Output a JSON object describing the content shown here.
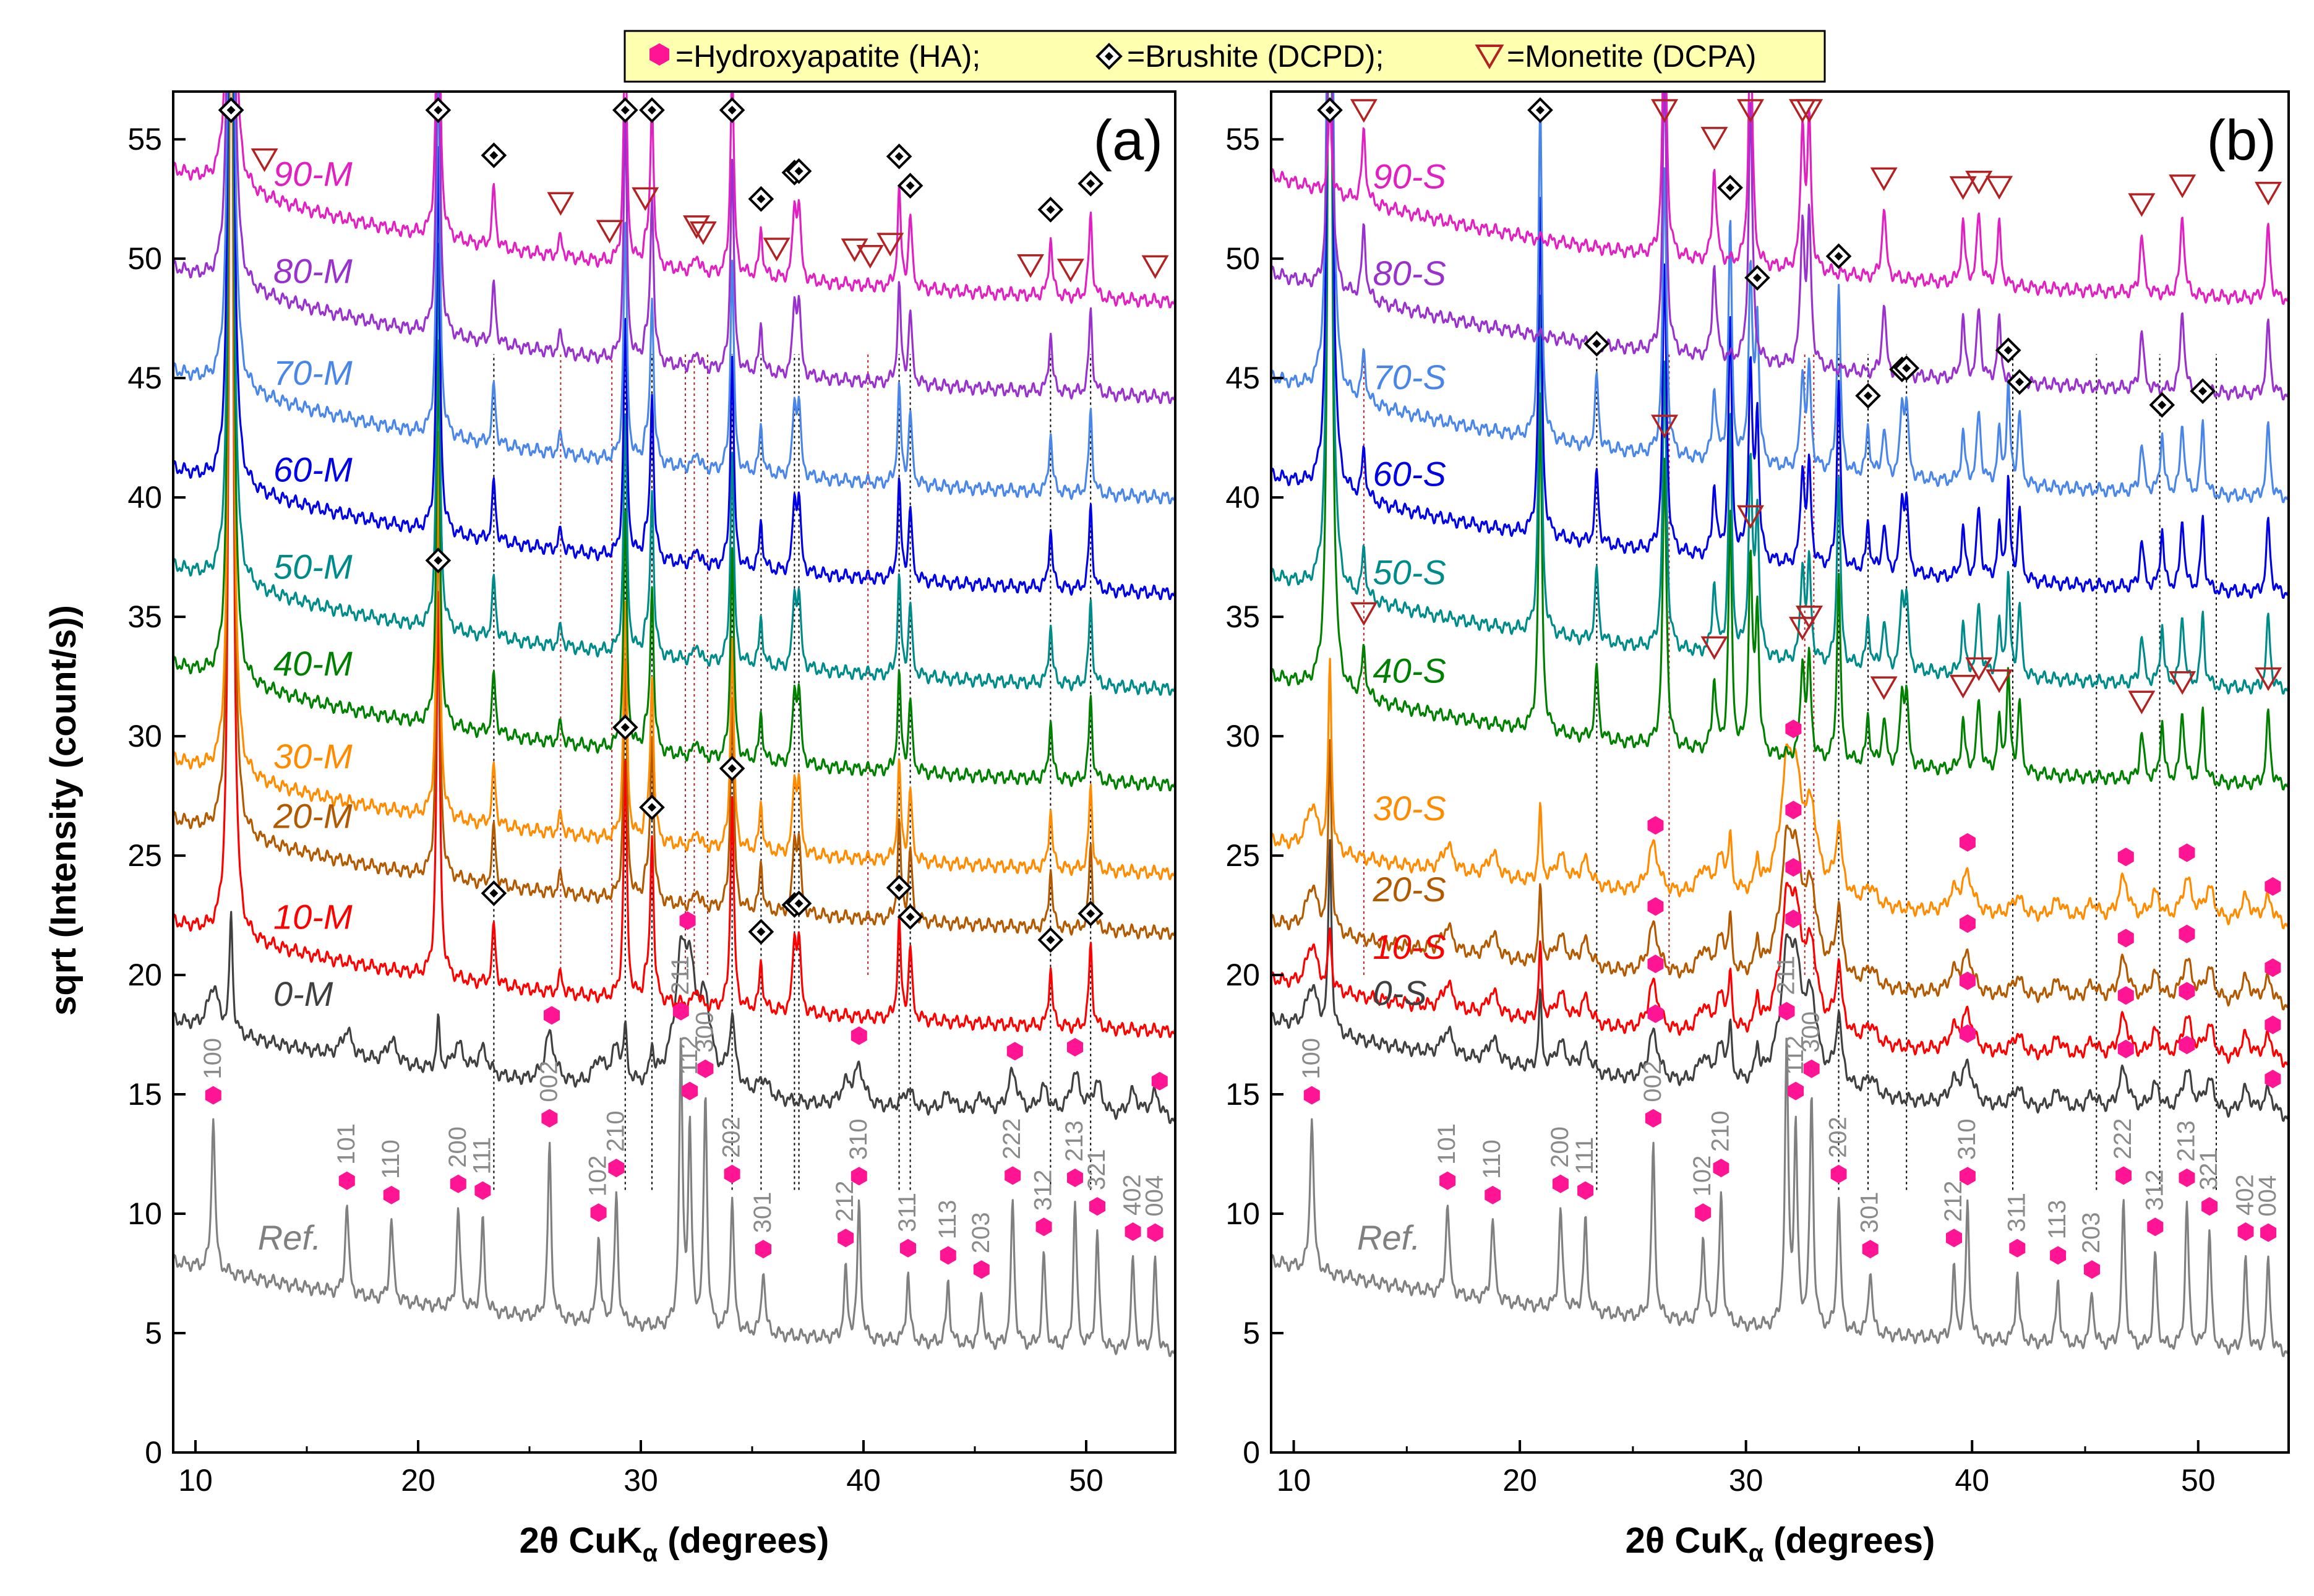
{
  "legend": {
    "ha_label": "=Hydroxyapatite (HA);",
    "dcpd_label": "=Brushite (DCPD);",
    "dcpa_label": "=Monetite (DCPA)",
    "colors": {
      "ha": "#ff1493",
      "dcpd": "#000000",
      "dcpa": "#b22222",
      "box_fill": "#ffffb0"
    }
  },
  "chart_data": [
    {
      "type": "line",
      "panel": "(a)",
      "xlabel_main": "2θ CuK",
      "xlabel_sub": "α",
      "xlabel_end": " (degrees)",
      "ylabel": "sqrt (Intensity (count/s))",
      "xlim": [
        9,
        54
      ],
      "ylim": [
        0,
        57
      ],
      "xticks": [
        "10",
        "20",
        "30",
        "40",
        "50"
      ],
      "yticks": [
        "0",
        "5",
        "10",
        "15",
        "20",
        "25",
        "30",
        "35",
        "40",
        "45",
        "50",
        "55"
      ],
      "series": [
        {
          "name": "Ref.",
          "color": "#808080",
          "offset": 4.8,
          "slope": 3.2,
          "kind": "ref"
        },
        {
          "name": "0-M",
          "color": "#404040",
          "offset": 14.4,
          "slope": 3.7,
          "kind": "ha"
        },
        {
          "name": "10-M",
          "color": "#ff0000",
          "offset": 18.2,
          "slope": 4.0,
          "kind": "dcpd"
        },
        {
          "name": "20-M",
          "color": "#b35900",
          "offset": 22.3,
          "slope": 4.2,
          "kind": "dcpd"
        },
        {
          "name": "30-M",
          "color": "#ff8c00",
          "offset": 24.8,
          "slope": 4.2,
          "kind": "dcpd"
        },
        {
          "name": "40-M",
          "color": "#008000",
          "offset": 28.5,
          "slope": 4.5,
          "kind": "dcpd"
        },
        {
          "name": "50-M",
          "color": "#008b8b",
          "offset": 32.5,
          "slope": 4.6,
          "kind": "dcpd"
        },
        {
          "name": "60-M",
          "color": "#0000e6",
          "offset": 36.5,
          "slope": 4.7,
          "kind": "dcpd"
        },
        {
          "name": "70-M",
          "color": "#4a86e8",
          "offset": 40.5,
          "slope": 4.8,
          "kind": "dcpd"
        },
        {
          "name": "80-M",
          "color": "#9932cc",
          "offset": 44.7,
          "slope": 4.9,
          "kind": "dcpd"
        },
        {
          "name": "90-M",
          "color": "#e020c0",
          "offset": 48.7,
          "slope": 5.0,
          "kind": "dcpd"
        }
      ]
    },
    {
      "type": "line",
      "panel": "(b)",
      "xlabel_main": "2θ CuK",
      "xlabel_sub": "α",
      "xlabel_end": " (degrees)",
      "xlim": [
        9,
        54
      ],
      "ylim": [
        0,
        57
      ],
      "xticks": [
        "10",
        "20",
        "30",
        "40",
        "50"
      ],
      "yticks": [
        "0",
        "5",
        "10",
        "15",
        "20",
        "25",
        "30",
        "35",
        "40",
        "45",
        "50",
        "55"
      ],
      "series": [
        {
          "name": "Ref.",
          "color": "#808080",
          "offset": 4.8,
          "slope": 3.2,
          "kind": "ref"
        },
        {
          "name": "0-S",
          "color": "#404040",
          "offset": 14.5,
          "slope": 3.6,
          "kind": "ha"
        },
        {
          "name": "10-S",
          "color": "#ff0000",
          "offset": 16.8,
          "slope": 3.0,
          "kind": "ha"
        },
        {
          "name": "20-S",
          "color": "#b35900",
          "offset": 19.2,
          "slope": 3.0,
          "kind": "ha"
        },
        {
          "name": "30-S",
          "color": "#ff8c00",
          "offset": 22.6,
          "slope": 3.0,
          "kind": "ha"
        },
        {
          "name": "40-S",
          "color": "#008000",
          "offset": 28.5,
          "slope": 4.0,
          "kind": "mix"
        },
        {
          "name": "50-S",
          "color": "#008b8b",
          "offset": 32.5,
          "slope": 4.2,
          "kind": "mix"
        },
        {
          "name": "60-S",
          "color": "#0000e6",
          "offset": 36.5,
          "slope": 4.4,
          "kind": "mix"
        },
        {
          "name": "70-S",
          "color": "#4a86e8",
          "offset": 40.5,
          "slope": 4.5,
          "kind": "mix"
        },
        {
          "name": "80-S",
          "color": "#9932cc",
          "offset": 44.8,
          "slope": 4.6,
          "kind": "dcpa"
        },
        {
          "name": "90-S",
          "color": "#e020c0",
          "offset": 48.8,
          "slope": 4.7,
          "kind": "dcpa"
        }
      ]
    }
  ],
  "reference_peaks": [
    {
      "hkl": "100",
      "x": 10.8,
      "h": 6.6
    },
    {
      "hkl": "101",
      "x": 16.8,
      "h": 3.9
    },
    {
      "hkl": "110",
      "x": 18.8,
      "h": 3.5
    },
    {
      "hkl": "200",
      "x": 21.8,
      "h": 4.2
    },
    {
      "hkl": "111",
      "x": 22.9,
      "h": 3.8
    },
    {
      "hkl": "002",
      "x": 25.9,
      "h": 7.2
    },
    {
      "hkl": "102",
      "x": 28.1,
      "h": 3.7
    },
    {
      "hkl": "210",
      "x": 28.9,
      "h": 5.4
    },
    {
      "hkl": "211",
      "x": 31.8,
      "h": 11.6
    },
    {
      "hkl": "112",
      "x": 32.2,
      "h": 8.1
    },
    {
      "hkl": "300",
      "x": 32.9,
      "h": 9.8
    },
    {
      "hkl": "202",
      "x": 34.1,
      "h": 5.7
    },
    {
      "hkl": "301",
      "x": 35.5,
      "h": 2.8
    },
    {
      "hkl": "212",
      "x": 39.2,
      "h": 2.8
    },
    {
      "hkl": "310",
      "x": 39.8,
      "h": 5.6
    },
    {
      "hkl": "311",
      "x": 42.0,
      "h": 2.9
    },
    {
      "hkl": "113",
      "x": 43.8,
      "h": 2.6
    },
    {
      "hkl": "203",
      "x": 45.3,
      "h": 2.3
    },
    {
      "hkl": "222",
      "x": 46.7,
      "h": 6.1
    },
    {
      "hkl": "312",
      "x": 48.1,
      "h": 3.9
    },
    {
      "hkl": "213",
      "x": 49.5,
      "h": 6.1
    },
    {
      "hkl": "321",
      "x": 50.5,
      "h": 4.9
    },
    {
      "hkl": "402",
      "x": 52.1,
      "h": 3.8
    },
    {
      "hkl": "004",
      "x": 53.1,
      "h": 3.8
    }
  ],
  "dcpd_peaks": [
    11.6,
    20.9,
    23.4,
    29.3,
    30.5,
    34.1,
    35.4,
    36.9,
    37.1,
    41.6,
    42.1,
    48.4,
    50.2
  ],
  "dcpa_peaks": [
    13.1,
    26.4,
    28.6,
    30.2,
    32.5,
    32.8,
    36.1,
    39.6,
    40.3,
    41.2,
    47.5,
    49.3,
    53.1
  ]
}
